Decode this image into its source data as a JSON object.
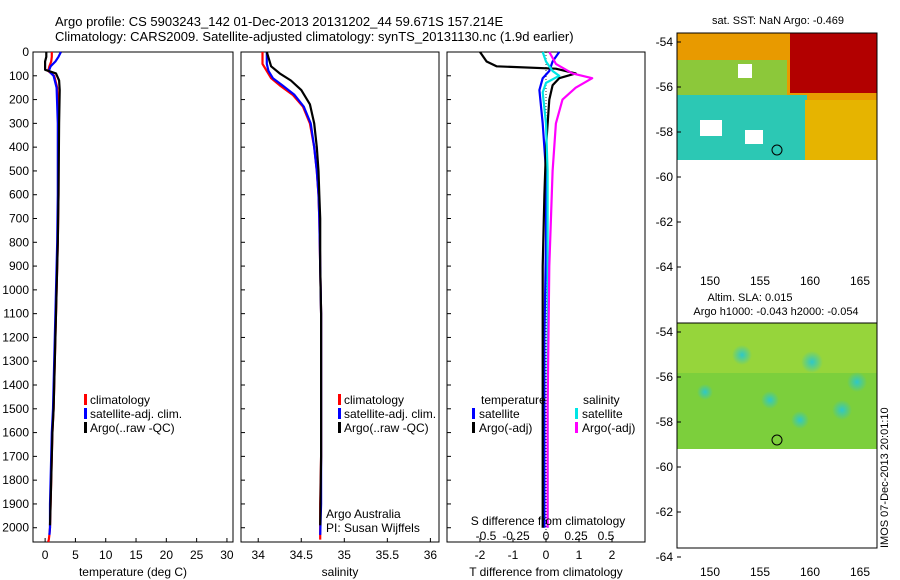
{
  "title": {
    "line1": "Argo profile: CS 5903243_142 01-Dec-2013 20131202_44 59.671S 157.214E",
    "line2": "Climatology: CARS2009. Satellite-adjusted climatology: synTS_20131130.nc (1.9d earlier)"
  },
  "colors": {
    "climatology": "#ff0000",
    "satellite": "#0000ff",
    "argo": "#000000",
    "sat_salinity": "#00e5e5",
    "argo_salinity": "#ff00ff"
  },
  "chart_data": [
    {
      "type": "line",
      "panel": "temperature",
      "xlabel": "temperature (deg C)",
      "ylabel": "",
      "xlim": [
        -2,
        31
      ],
      "ylim": [
        2060,
        0
      ],
      "xticks": [
        "0",
        "5",
        "10",
        "15",
        "20",
        "25",
        "30"
      ],
      "xtick_values": [
        0,
        5,
        10,
        15,
        20,
        25,
        30
      ],
      "yticks": [
        "0",
        "100",
        "200",
        "300",
        "400",
        "500",
        "600",
        "700",
        "800",
        "900",
        "1000",
        "1100",
        "1200",
        "1300",
        "1400",
        "1500",
        "1600",
        "1700",
        "1800",
        "1900",
        "2000"
      ],
      "legend": [
        "climatology",
        "satellite-adj. clim.",
        "Argo(..raw -QC)"
      ],
      "series": [
        {
          "name": "climatology",
          "x": [
            1.1,
            1.1,
            1.0,
            0.7,
            0.5,
            1.5,
            2.0,
            2.2,
            2.2,
            2.1,
            1.9,
            1.7,
            1.5,
            1.4,
            1.2,
            1.1,
            1.0,
            0.9,
            0.8,
            0.7,
            0.6,
            0.5
          ],
          "y": [
            0,
            20,
            40,
            60,
            80,
            100,
            150,
            300,
            600,
            800,
            1000,
            1200,
            1400,
            1500,
            1600,
            1700,
            1800,
            1900,
            2000,
            2030,
            2050,
            2060
          ]
        },
        {
          "name": "satellite-adj. clim.",
          "x": [
            2.6,
            2.2,
            1.7,
            0.9,
            0.6,
            1.4,
            1.9,
            2.1,
            2.1,
            2.0,
            1.8,
            1.6,
            1.4,
            1.3,
            1.1,
            1.0,
            0.9,
            0.8,
            0.8,
            0.7
          ],
          "y": [
            0,
            20,
            40,
            60,
            80,
            100,
            150,
            300,
            600,
            800,
            1000,
            1200,
            1400,
            1500,
            1600,
            1700,
            1800,
            1900,
            2000,
            2030
          ]
        },
        {
          "name": "Argo(..raw -QC)",
          "x": [
            0.2,
            0.2,
            0.0,
            0.0,
            1.8,
            2.3,
            2.4,
            2.3,
            2.2,
            2.1,
            1.9,
            1.7,
            1.5,
            1.4,
            1.2,
            1.1,
            1.0,
            0.9,
            0.8
          ],
          "y": [
            0,
            20,
            40,
            75,
            90,
            120,
            160,
            300,
            600,
            800,
            1000,
            1200,
            1400,
            1500,
            1600,
            1700,
            1800,
            1900,
            1990
          ]
        }
      ]
    },
    {
      "type": "line",
      "panel": "salinity",
      "xlabel": "salinity",
      "ylabel": "",
      "xlim": [
        33.8,
        36.1
      ],
      "ylim": [
        2060,
        0
      ],
      "xticks": [
        "34",
        "34.5",
        "35",
        "35.5",
        "36"
      ],
      "xtick_values": [
        34,
        34.5,
        35,
        35.5,
        36
      ],
      "legend": [
        "climatology",
        "satellite-adj. clim.",
        "Argo(..raw -QC)"
      ],
      "series": [
        {
          "name": "climatology",
          "x": [
            34.05,
            34.05,
            34.1,
            34.15,
            34.25,
            34.4,
            34.52,
            34.6,
            34.65,
            34.68,
            34.7,
            34.71,
            34.72,
            34.73,
            34.73,
            34.73,
            34.73,
            34.72,
            34.72,
            34.72
          ],
          "y": [
            0,
            50,
            80,
            110,
            140,
            180,
            230,
            300,
            400,
            500,
            600,
            700,
            900,
            1100,
            1300,
            1500,
            1700,
            1900,
            2000,
            2050
          ]
        },
        {
          "name": "satellite-adj. clim.",
          "x": [
            34.1,
            34.1,
            34.12,
            34.17,
            34.28,
            34.42,
            34.53,
            34.61,
            34.65,
            34.68,
            34.7,
            34.71,
            34.72,
            34.73,
            34.73,
            34.73,
            34.73,
            34.73,
            34.72
          ],
          "y": [
            0,
            50,
            80,
            110,
            140,
            180,
            230,
            300,
            400,
            500,
            600,
            700,
            900,
            1100,
            1300,
            1500,
            1700,
            1900,
            2030
          ]
        },
        {
          "name": "Argo(..raw -QC)",
          "x": [
            34.1,
            34.15,
            34.25,
            34.38,
            34.5,
            34.6,
            34.65,
            34.68,
            34.7,
            34.71,
            34.72,
            34.72,
            34.73,
            34.73,
            34.73,
            34.73,
            34.72
          ],
          "y": [
            0,
            60,
            90,
            120,
            160,
            220,
            300,
            400,
            500,
            600,
            700,
            900,
            1100,
            1300,
            1500,
            1700,
            1990
          ]
        }
      ],
      "annotation": [
        "Argo Australia",
        "PI: Susan Wijffels"
      ]
    },
    {
      "type": "line",
      "panel": "difference",
      "xlabel": "T difference from climatology",
      "top_label": "S difference from climatology",
      "ylabel": "",
      "xlim": [
        -3,
        3
      ],
      "ylim": [
        2060,
        0
      ],
      "xticks": [
        "-2",
        "-1",
        "0",
        "1",
        "2"
      ],
      "xtick_values": [
        -2,
        -1,
        0,
        1,
        2
      ],
      "top_ticks": [
        "-0.5",
        "-0.25",
        "0",
        "0.25",
        "0.5"
      ],
      "legend": {
        "temperature_header": "temperature",
        "salinity_header": "salinity",
        "entries": [
          "satellite",
          "Argo(-adj)",
          "satellite",
          "Argo(-adj)"
        ]
      },
      "series": [
        {
          "name": "temperature satellite",
          "x": [
            0.4,
            0.2,
            0.1,
            -0.1,
            -0.2,
            -0.1,
            0.0,
            0.0,
            -0.05,
            -0.05,
            -0.05
          ],
          "y": [
            0,
            40,
            80,
            110,
            160,
            300,
            500,
            800,
            1200,
            1700,
            2000
          ]
        },
        {
          "name": "temperature Argo(-adj)",
          "x": [
            -2.0,
            -1.8,
            -1.5,
            0.3,
            0.9,
            0.4,
            0.2,
            0.1,
            0.0,
            -0.05,
            -0.1,
            -0.1,
            -0.1,
            -0.1
          ],
          "y": [
            0,
            40,
            60,
            70,
            90,
            110,
            140,
            200,
            400,
            600,
            900,
            1300,
            1700,
            2000
          ]
        },
        {
          "name": "salinity satellite",
          "x": [
            -0.1,
            0.0,
            0.2,
            0.4,
            0.0,
            -0.1,
            0.0,
            0.05,
            0.05,
            0.05,
            0.05
          ],
          "y": [
            0,
            40,
            80,
            100,
            130,
            170,
            300,
            500,
            900,
            1500,
            2000
          ]
        },
        {
          "name": "salinity Argo(-adj)",
          "x": [
            0.1,
            0.3,
            0.8,
            1.4,
            0.9,
            0.5,
            0.3,
            0.2,
            0.1,
            0.05,
            0.05
          ],
          "y": [
            0,
            50,
            90,
            110,
            150,
            200,
            300,
            500,
            900,
            1500,
            2000
          ]
        }
      ]
    }
  ],
  "maps": {
    "sst": {
      "title": "sat. SST: NaN Argo: -0.469",
      "yticks": [
        "-54",
        "-56",
        "-58",
        "-60",
        "-62",
        "-64"
      ],
      "xticks": [
        "150",
        "155",
        "160",
        "165"
      ]
    },
    "sla": {
      "title_line1": "Altim. SLA: 0.015",
      "title_line2": "Argo h1000: -0.043 h2000: -0.054",
      "yticks": [
        "-54",
        "-56",
        "-58",
        "-60",
        "-62",
        "-64"
      ],
      "xticks": [
        "150",
        "155",
        "160",
        "165"
      ]
    }
  },
  "stamp": "IMOS 07-Dec-2013 20:01:10"
}
